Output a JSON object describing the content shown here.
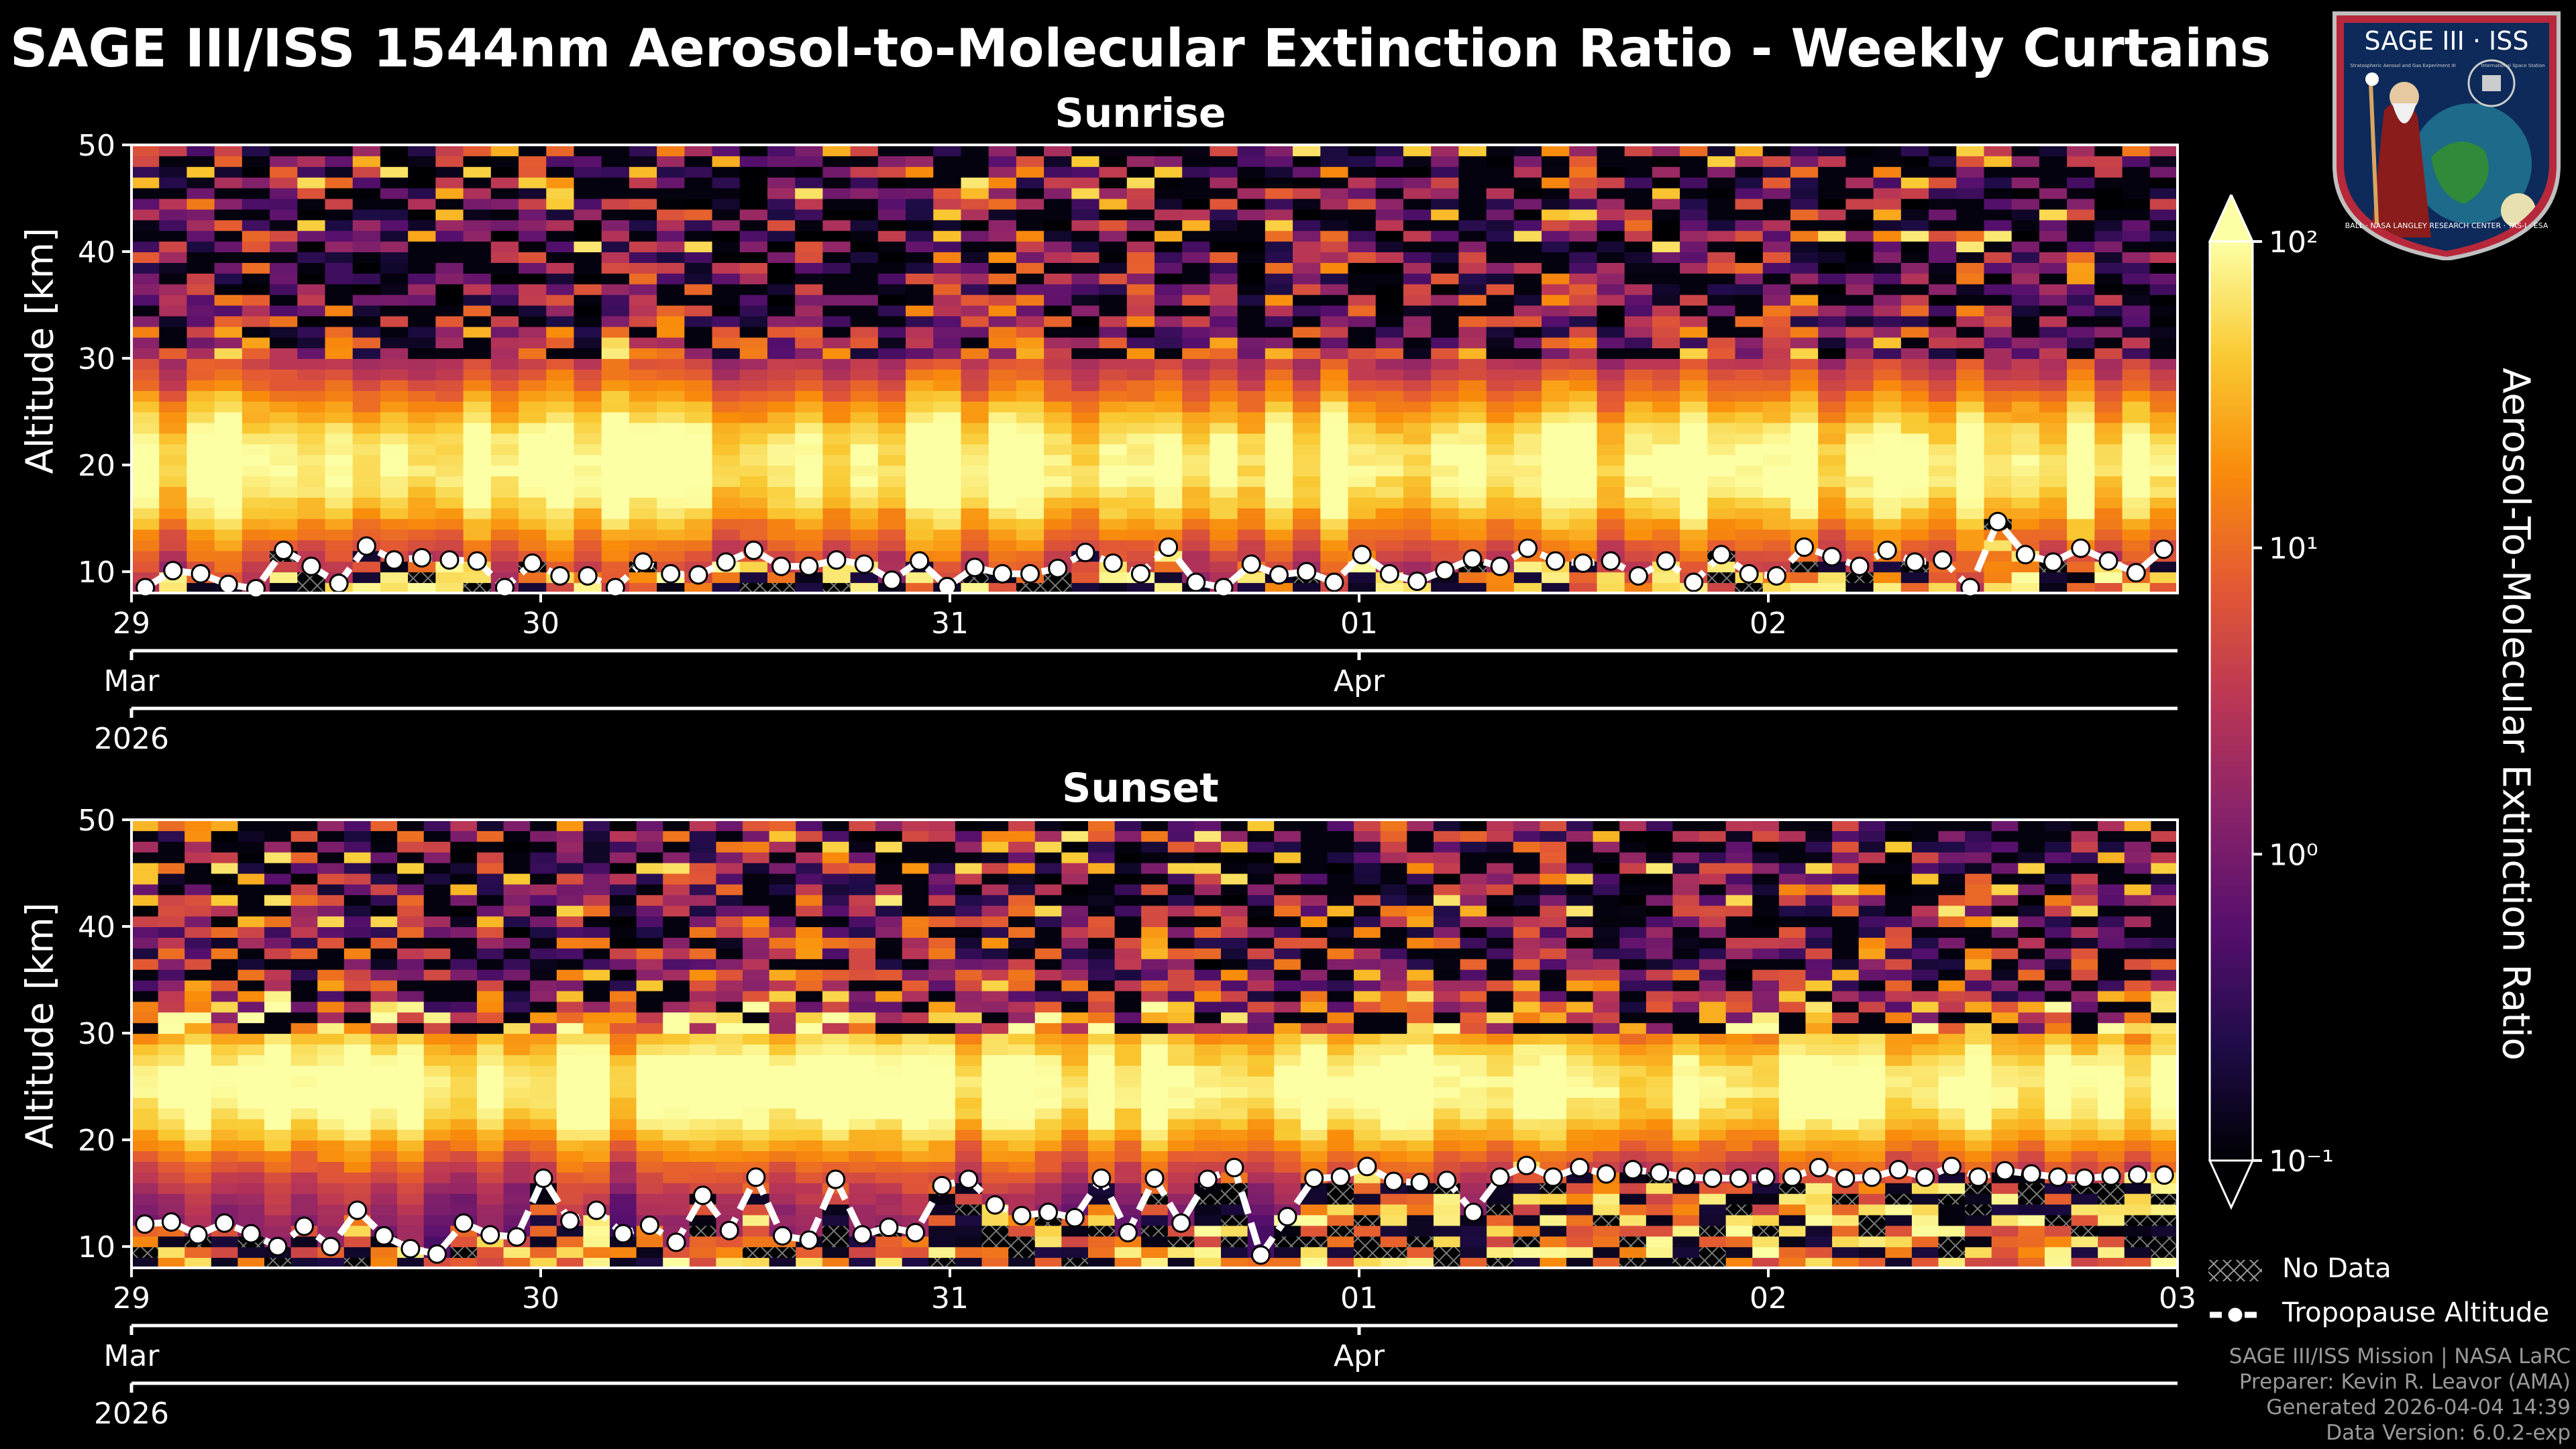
{
  "title": "SAGE III/ISS 1544nm Aerosol-to-Molecular Extinction Ratio - Weekly Curtains",
  "badge": {
    "name": "SAGE III · ISS",
    "ring_text": "BALL · NASA LANGLEY RESEARCH CENTER · TAS-I · ESA",
    "side_text": "Stratospheric Aerosol and Gas Experiment III",
    "station": "International Space Station"
  },
  "colorbar": {
    "label": "Aerosol-To-Molecular Extinction Ratio",
    "scale": "log",
    "colormap": "inferno",
    "ticks": [
      "10⁻¹",
      "10⁰",
      "10¹",
      "10²"
    ],
    "extend": "both"
  },
  "legend": {
    "items": [
      "No Data",
      "Tropopause Altitude"
    ]
  },
  "footer": {
    "line1": "SAGE III/ISS Mission | NASA LaRC",
    "line2": "Preparer: Kevin R. Leavor (AMA)",
    "line3": "Generated 2026-04-04 14:39",
    "line4": "Data Version: 6.0.2-exp"
  },
  "chart_data": [
    {
      "type": "heatmap",
      "title": "Sunrise",
      "ylabel": "Altitude [km]",
      "ylim": [
        8,
        50
      ],
      "yticks": [
        "10",
        "20",
        "30",
        "40",
        "50"
      ],
      "xlim": [
        0,
        5.0
      ],
      "xticks": [
        "29",
        "30",
        "31",
        "01",
        "02"
      ],
      "month_labels": [
        "Mar",
        "Apr"
      ],
      "year_label": "2026",
      "tropopause_km": [
        8.5,
        10.1,
        9.8,
        8.8,
        8.4,
        12.0,
        10.5,
        8.9,
        12.4,
        11.1,
        11.3,
        11.1,
        11.0,
        8.5,
        10.8,
        9.6,
        9.6,
        8.5,
        10.9,
        9.8,
        9.7,
        10.9,
        12.0,
        10.5,
        10.5,
        11.1,
        10.7,
        9.2,
        11.0,
        8.6,
        10.4,
        9.8,
        9.8,
        10.3,
        11.8,
        10.8,
        9.8,
        12.3,
        9.0,
        8.5,
        10.7,
        9.7,
        10.0,
        9.0,
        11.6,
        9.8,
        9.1,
        10.1,
        11.2,
        10.5,
        12.2,
        11.0,
        10.8,
        11.0,
        9.6,
        11.0,
        9.0,
        11.6,
        9.8,
        9.6,
        12.3,
        11.4,
        10.5,
        12.0,
        10.9,
        11.1,
        8.5,
        14.7,
        11.6,
        10.9,
        12.2,
        11.0,
        9.9,
        12.1
      ]
    },
    {
      "type": "heatmap",
      "title": "Sunset",
      "ylabel": "Altitude [km]",
      "ylim": [
        8,
        50
      ],
      "yticks": [
        "10",
        "20",
        "30",
        "40",
        "50"
      ],
      "xlim": [
        0,
        5.0
      ],
      "xticks": [
        "29",
        "30",
        "31",
        "01",
        "02",
        "03"
      ],
      "month_labels": [
        "Mar",
        "Apr"
      ],
      "year_label": "2026",
      "tropopause_km": [
        12.1,
        12.3,
        11.1,
        12.2,
        11.2,
        10.0,
        11.9,
        10.0,
        13.4,
        11.0,
        9.8,
        9.3,
        12.2,
        11.1,
        10.9,
        16.4,
        12.4,
        13.4,
        11.2,
        12.0,
        10.4,
        14.8,
        11.5,
        16.5,
        11.0,
        10.6,
        16.3,
        11.1,
        11.8,
        11.3,
        15.7,
        16.3,
        13.9,
        12.9,
        13.2,
        12.7,
        16.4,
        11.3,
        16.4,
        12.2,
        16.3,
        17.4,
        9.2,
        12.8,
        16.4,
        16.5,
        17.5,
        16.1,
        16.0,
        16.2,
        13.2,
        16.5,
        17.6,
        16.5,
        17.4,
        16.8,
        17.2,
        16.9,
        16.5,
        16.4,
        16.4,
        16.5,
        16.5,
        17.4,
        16.4,
        16.5,
        17.2,
        16.5,
        17.5,
        16.5,
        17.1,
        16.8,
        16.5,
        16.4,
        16.6,
        16.7,
        16.7
      ]
    }
  ]
}
